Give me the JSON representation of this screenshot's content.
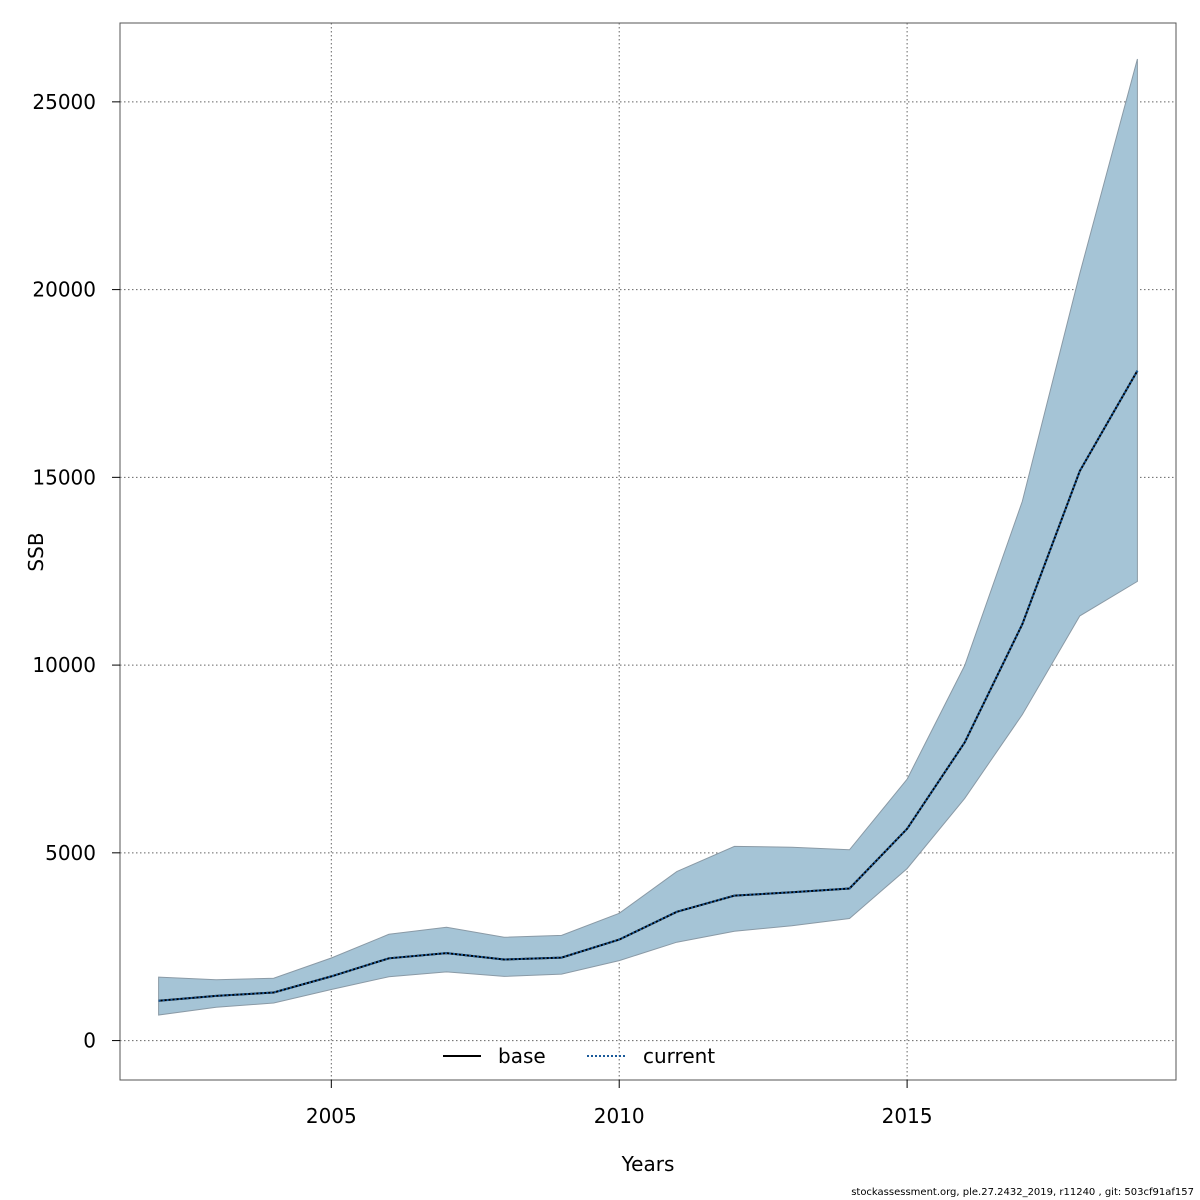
{
  "chart_data": {
    "type": "area",
    "xlabel": "Years",
    "ylabel": "SSB",
    "xlim": [
      2001.33,
      2019.67
    ],
    "ylim": [
      -1050,
      27100
    ],
    "x_ticks": [
      2005,
      2010,
      2015
    ],
    "y_ticks": [
      0,
      5000,
      10000,
      15000,
      20000,
      25000
    ],
    "x_tick_labels": [
      "2005",
      "2010",
      "2015"
    ],
    "y_tick_labels": [
      "0",
      "5000",
      "10000",
      "15000",
      "20000",
      "25000"
    ],
    "grid": true,
    "legend_position": "bottom",
    "legend": [
      {
        "name": "base",
        "style": "solid",
        "color": "#000000"
      },
      {
        "name": "current",
        "style": "dotted",
        "color": "#1a5a9a"
      }
    ],
    "x": [
      2002,
      2003,
      2004,
      2005,
      2006,
      2007,
      2008,
      2009,
      2010,
      2011,
      2012,
      2013,
      2014,
      2015,
      2016,
      2017,
      2018,
      2019
    ],
    "series": [
      {
        "name": "base",
        "values": [
          1060,
          1190,
          1280,
          1710,
          2190,
          2330,
          2160,
          2210,
          2690,
          3430,
          3860,
          3950,
          4050,
          5640,
          7940,
          11090,
          15170,
          17840
        ]
      },
      {
        "name": "current",
        "values": [
          1060,
          1190,
          1280,
          1710,
          2190,
          2330,
          2160,
          2210,
          2690,
          3430,
          3860,
          3950,
          4050,
          5640,
          7940,
          11090,
          15170,
          17840
        ]
      }
    ],
    "band": {
      "lower": [
        680,
        890,
        1000,
        1360,
        1700,
        1830,
        1710,
        1770,
        2130,
        2620,
        2910,
        3060,
        3250,
        4580,
        6450,
        8680,
        11310,
        12230
      ],
      "upper": [
        1690,
        1620,
        1660,
        2200,
        2830,
        3020,
        2750,
        2800,
        3390,
        4500,
        5170,
        5150,
        5080,
        6960,
        9990,
        14360,
        20430,
        26140
      ],
      "color": "#a5c4d6"
    }
  },
  "footer": "stockassessment.org, ple.27.2432_2019, r11240 , git: 503cf91af157"
}
